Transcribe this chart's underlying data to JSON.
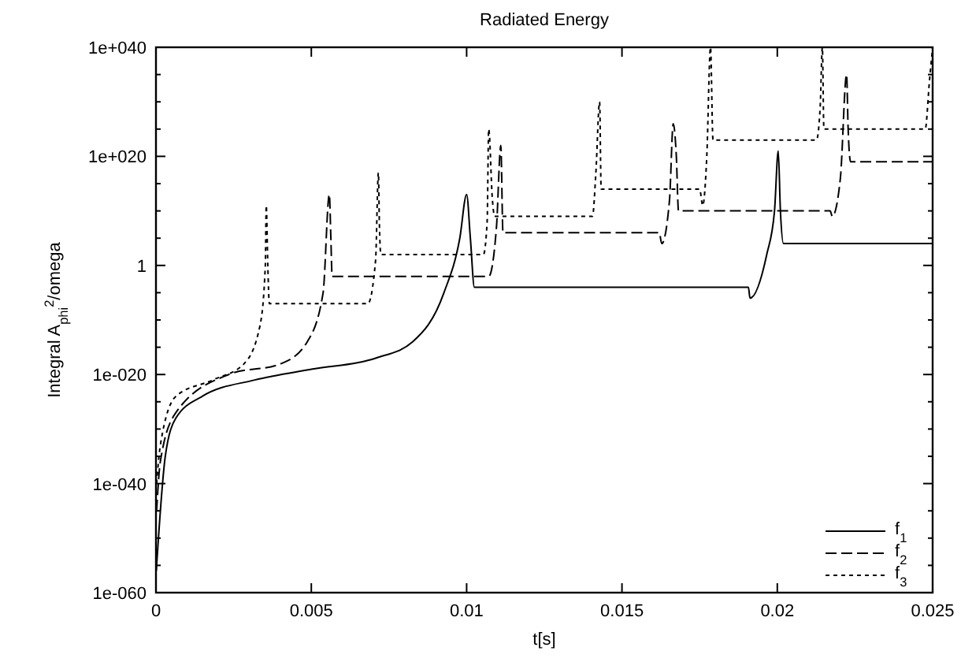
{
  "chart_data": {
    "type": "line",
    "title": "Radiated Energy",
    "xlabel": "t[s]",
    "ylabel": "Integral A$_{phi}$$^{2}$/omega",
    "log": "y",
    "grid": false,
    "legend": "bottom right",
    "xlim": [
      0,
      0.025
    ],
    "xticks": [
      0,
      0.005,
      0.01,
      0.015,
      0.02,
      0.025
    ],
    "ylim": [
      1e-60,
      1e+40
    ],
    "yticks": [
      {
        "value": 1e-60,
        "label": "1e-060"
      },
      {
        "value": 1e-55,
        "label": null
      },
      {
        "value": 1e-50,
        "label": null
      },
      {
        "value": 1e-45,
        "label": null
      },
      {
        "value": 1e-40,
        "label": "1e-040"
      },
      {
        "value": 1e-35,
        "label": null
      },
      {
        "value": 1e-30,
        "label": null
      },
      {
        "value": 1e-25,
        "label": null
      },
      {
        "value": 1e-20,
        "label": "1e-020"
      },
      {
        "value": 1e-15,
        "label": null
      },
      {
        "value": 1e-10,
        "label": null
      },
      {
        "value": 1e-05,
        "label": null
      },
      1,
      {
        "value": 100000.0,
        "label": null
      },
      {
        "value": 10000000000.0,
        "label": null
      },
      {
        "value": 1000000000000000.0,
        "label": null
      },
      {
        "value": 1e+20,
        "label": "1e+020"
      },
      {
        "value": 1e+25,
        "label": null
      },
      {
        "value": 1e+30,
        "label": null
      },
      {
        "value": 1e+35,
        "label": null
      },
      {
        "value": 1e+40,
        "label": "1e+040"
      }
    ],
    "series": [
      {
        "name": "f$_{1}$",
        "color": "#000000",
        "line_style": "solid",
        "x": [
          1e-05,
          0.0003,
          0.00064,
          0.00149,
          0.00318,
          0.00504,
          0.00707,
          0.00826,
          0.00927,
          0.00978,
          0.01,
          0.01012,
          0.01025,
          0.01907,
          0.01912,
          0.01966,
          0.01991,
          0.02003,
          0.0201,
          0.0202,
          0.025
        ],
        "values": [
          1e-56,
          1e-35,
          1e-28,
          1e-24,
          1e-21,
          1e-19,
          1e-17,
          1e-14,
          1e-05,
          100000.0,
          10000000000000.0,
          100000.0,
          0.0001,
          0.0001,
          1e-06,
          100.0,
          10000000000.0,
          1e+21,
          10000000000.0,
          10000.0,
          10000.0
        ]
      },
      {
        "name": "f$_{2}$",
        "color": "#000000",
        "line_style": "dashed",
        "x": [
          2e-05,
          0.00014,
          0.00064,
          0.00234,
          0.00403,
          0.00487,
          0.00538,
          0.00558,
          0.00563,
          0.00567,
          0.01071,
          0.01096,
          0.0111,
          0.01117,
          0.0162,
          0.01628,
          0.01653,
          0.01665,
          0.01675,
          0.01682,
          0.0217,
          0.02177,
          0.02203,
          0.02223,
          0.02228,
          0.02236,
          0.025
        ],
        "values": [
          1e-45,
          1e-36,
          1e-27,
          1e-20,
          1e-18,
          1e-14,
          1e-05,
          10000000000000.0,
          100000.0,
          0.01,
          0.01,
          10000000.0,
          1e+22,
          1000000.0,
          1000000.0,
          10000.0,
          1000000000000.0,
          1e+26,
          1e+20,
          10000000000.0,
          10000000000.0,
          1000000000.0,
          1e+16,
          1e+35,
          1e+25,
          1e+19,
          1e+19
        ]
      },
      {
        "name": "f$_{3}$",
        "color": "#000000",
        "line_style": "dotted",
        "x": [
          2e-05,
          0.00014,
          0.00064,
          0.00183,
          0.00284,
          0.00335,
          0.00352,
          0.00355,
          0.0036,
          0.00365,
          0.00682,
          0.00707,
          0.00716,
          0.00719,
          0.00724,
          0.01054,
          0.01066,
          0.01071,
          0.01083,
          0.0109,
          0.01405,
          0.01416,
          0.01428,
          0.01433,
          0.01438,
          0.0175,
          0.0176,
          0.01773,
          0.01785,
          0.01793,
          0.02126,
          0.02138,
          0.02145,
          0.0215,
          0.02476,
          0.0249,
          0.025
        ],
        "values": [
          1e-40,
          1e-33,
          1e-24,
          1e-21,
          1e-18,
          1e-11,
          1,
          100000000000.0,
          1,
          1e-07,
          1e-07,
          10.0,
          1e+17,
          100000000.0,
          100.0,
          100.0,
          100000000.0,
          1e+25,
          1000000000000.0,
          1000000000.0,
          1000000000.0,
          1e+17,
          1e+30,
          100000000000000.0,
          100000000000000.0,
          100000000000000.0,
          100000000000.0,
          1e+20,
          1e+40,
          1e+23,
          1e+23,
          1e+29,
          1e+40,
          1e+25,
          1e+25,
          1e+34,
          1e+40
        ]
      }
    ]
  }
}
